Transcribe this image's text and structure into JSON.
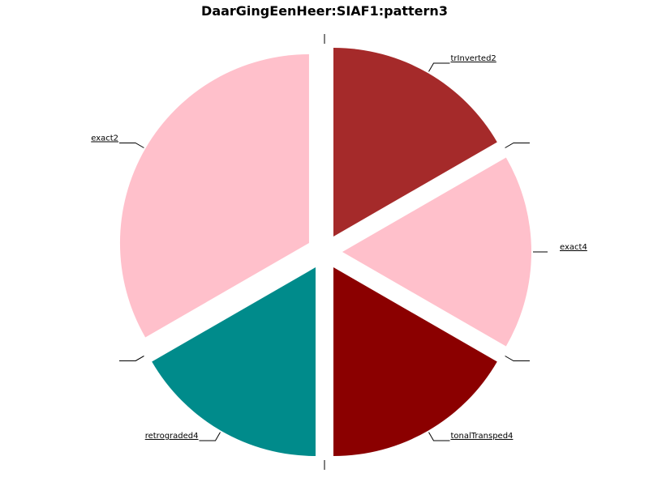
{
  "chart_data": {
    "type": "pie",
    "title": "DaarGingEenHeer:SIAF1:pattern3",
    "start_angle_deg": 90,
    "direction": "counterclockwise",
    "exploded": true,
    "slices": [
      {
        "label": "exact2",
        "value": 2,
        "color": "#FFC0CB",
        "show_label": true
      },
      {
        "label": "",
        "value": 0,
        "color": "#FFC0CB",
        "show_label": false
      },
      {
        "label": "",
        "value": 0,
        "color": "#FFC0CB",
        "show_label": false
      },
      {
        "label": "retrograded4",
        "value": 1,
        "color": "#008B8B",
        "show_label": true
      },
      {
        "label": "",
        "value": 0,
        "color": "#008B8B",
        "show_label": false
      },
      {
        "label": "tonalTransped4",
        "value": 1,
        "color": "#8B0000",
        "show_label": true
      },
      {
        "label": "",
        "value": 0,
        "color": "#8B0000",
        "show_label": false
      },
      {
        "label": "exact4",
        "value": 1,
        "color": "#FFC0CB",
        "show_label": true
      },
      {
        "label": "",
        "value": 0,
        "color": "#FFC0CB",
        "show_label": false
      },
      {
        "label": "trInverted2",
        "value": 1,
        "color": "#A52A2A",
        "show_label": true
      },
      {
        "label": "",
        "value": 0,
        "color": "#A52A2A",
        "show_label": false
      }
    ]
  }
}
